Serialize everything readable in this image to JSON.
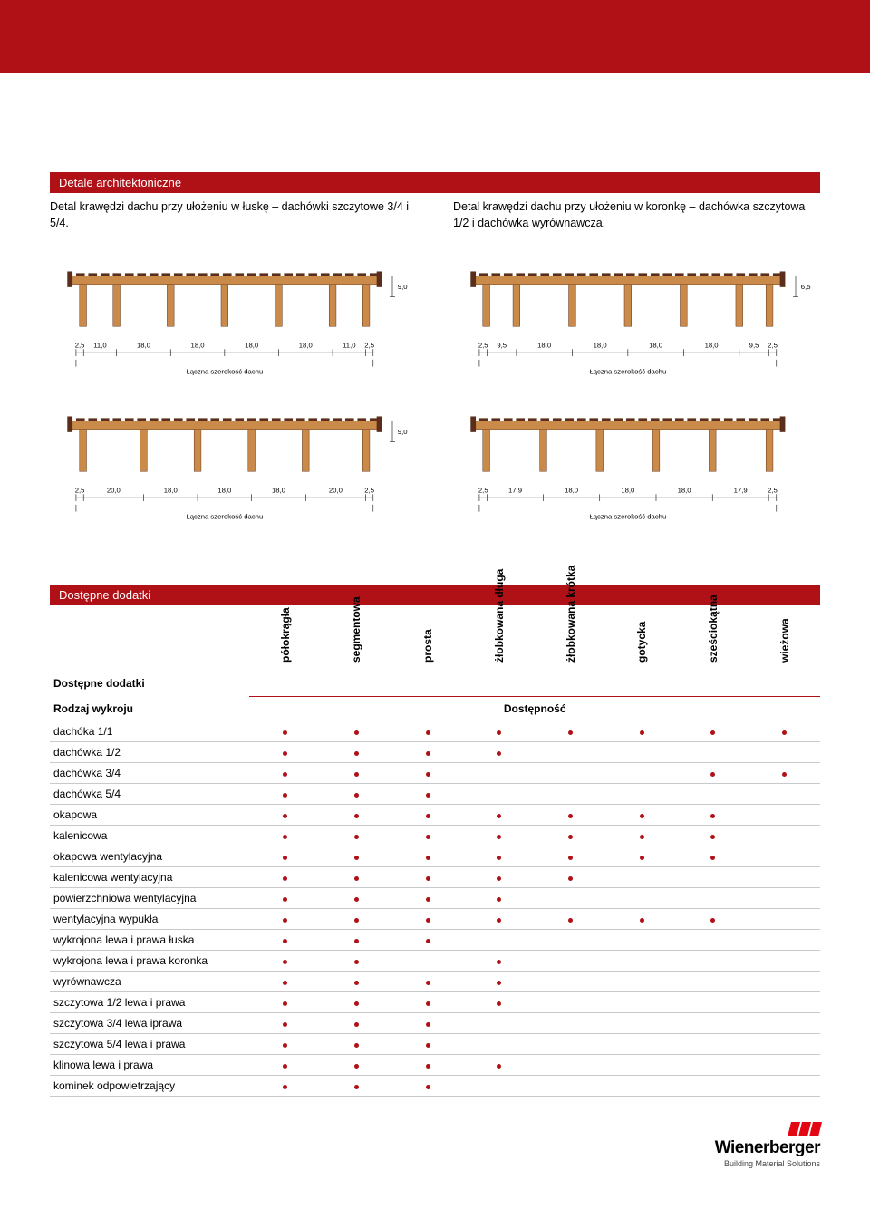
{
  "colors": {
    "brand_red": "#b01116",
    "logo_red": "#e30613",
    "row_border": "#c9c9c9",
    "diagram_wood": "#c98a4a",
    "diagram_brick": "#5a2e1a",
    "diagram_line": "#000000",
    "diagram_hatch": "#bfbfbf",
    "text": "#000000"
  },
  "header": {
    "details_title": "Detale architektoniczne",
    "left_caption": "Detal krawędzi dachu przy ułożeniu w łuskę – dachówki szczytowe 3/4 i 5/4.",
    "right_caption": "Detal krawędzi dachu przy ułożeniu w koronkę – dachówka szczytowa 1/2 i dachówka wyrównawcza."
  },
  "diagrams": {
    "width_label": "Łączna szerokość dachu",
    "font_size_pt": 7.5,
    "row1_left": {
      "segments": [
        "2,5",
        "11,0",
        "18,0",
        "18,0",
        "18,0",
        "18,0",
        "11,0",
        "2,5"
      ],
      "side_dim": "9,0"
    },
    "row1_right": {
      "segments": [
        "2,5",
        "9,5",
        "18,0",
        "18,0",
        "18,0",
        "18,0",
        "9,5",
        "2,5"
      ],
      "side_dim": "6,5"
    },
    "row2_left": {
      "segments": [
        "2,5",
        "20,0",
        "18,0",
        "18,0",
        "18,0",
        "20,0",
        "2,5"
      ],
      "side_dim": "9,0"
    },
    "row2_right": {
      "segments": [
        "2,5",
        "17,9",
        "18,0",
        "18,0",
        "18,0",
        "17,9",
        "2,5"
      ],
      "side_dim": null
    }
  },
  "addons": {
    "section_title": "Dostępne dodatki",
    "table_title": "Dostępne dodatki",
    "rowhead_label": "Rodzaj wykroju",
    "availability_label": "Dostępność",
    "columns": [
      "półokrągła",
      "segmentowa",
      "prosta",
      "żłobkowana długa",
      "żłobkowana krótka",
      "gotycka",
      "sześciokątna",
      "wieżowa"
    ],
    "rows": [
      {
        "name": "dachóka 1/1",
        "cells": [
          1,
          1,
          1,
          1,
          1,
          1,
          1,
          1
        ]
      },
      {
        "name": "dachówka 1/2",
        "cells": [
          1,
          1,
          1,
          1,
          0,
          0,
          0,
          0
        ]
      },
      {
        "name": "dachówka 3/4",
        "cells": [
          1,
          1,
          1,
          0,
          0,
          0,
          1,
          1
        ]
      },
      {
        "name": "dachówka 5/4",
        "cells": [
          1,
          1,
          1,
          0,
          0,
          0,
          0,
          0
        ]
      },
      {
        "name": "okapowa",
        "cells": [
          1,
          1,
          1,
          1,
          1,
          1,
          1,
          0
        ]
      },
      {
        "name": "kalenicowa",
        "cells": [
          1,
          1,
          1,
          1,
          1,
          1,
          1,
          0
        ]
      },
      {
        "name": "okapowa wentylacyjna",
        "cells": [
          1,
          1,
          1,
          1,
          1,
          1,
          1,
          0
        ]
      },
      {
        "name": "kalenicowa wentylacyjna",
        "cells": [
          1,
          1,
          1,
          1,
          1,
          0,
          0,
          0
        ]
      },
      {
        "name": "powierzchniowa wentylacyjna",
        "cells": [
          1,
          1,
          1,
          1,
          0,
          0,
          0,
          0
        ]
      },
      {
        "name": "wentylacyjna wypukła",
        "cells": [
          1,
          1,
          1,
          1,
          1,
          1,
          1,
          0
        ]
      },
      {
        "name": "wykrojona lewa i prawa łuska",
        "cells": [
          1,
          1,
          1,
          0,
          0,
          0,
          0,
          0
        ]
      },
      {
        "name": "wykrojona lewa i prawa koronka",
        "cells": [
          1,
          1,
          0,
          1,
          0,
          0,
          0,
          0
        ]
      },
      {
        "name": "wyrównawcza",
        "cells": [
          1,
          1,
          1,
          1,
          0,
          0,
          0,
          0
        ]
      },
      {
        "name": "szczytowa 1/2 lewa i prawa",
        "cells": [
          1,
          1,
          1,
          1,
          0,
          0,
          0,
          0
        ]
      },
      {
        "name": "szczytowa 3/4 lewa iprawa",
        "cells": [
          1,
          1,
          1,
          0,
          0,
          0,
          0,
          0
        ]
      },
      {
        "name": "szczytowa 5/4 lewa i prawa",
        "cells": [
          1,
          1,
          1,
          0,
          0,
          0,
          0,
          0
        ]
      },
      {
        "name": "klinowa lewa i prawa",
        "cells": [
          1,
          1,
          1,
          1,
          0,
          0,
          0,
          0
        ]
      },
      {
        "name": "kominek odpowietrzający",
        "cells": [
          1,
          1,
          1,
          0,
          0,
          0,
          0,
          0
        ]
      }
    ]
  },
  "footer": {
    "brand": "Wienerberger",
    "tagline": "Building Material Solutions"
  }
}
